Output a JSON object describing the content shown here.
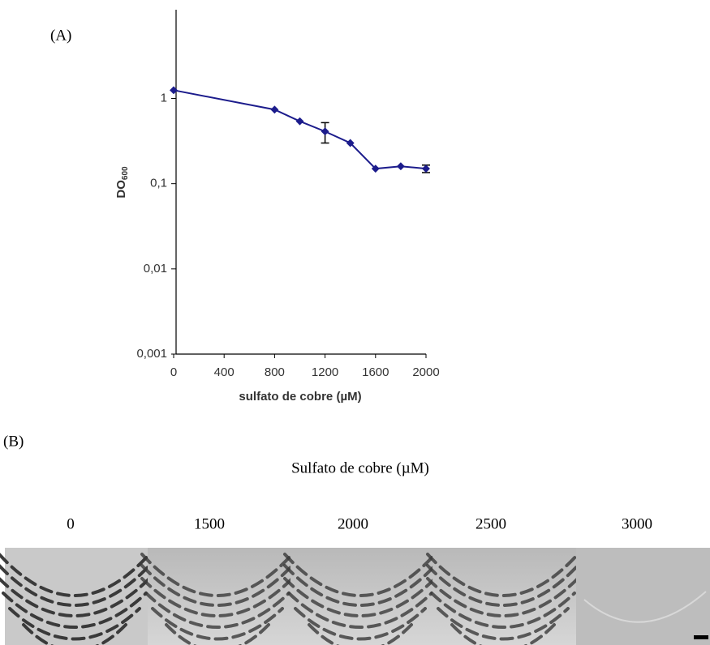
{
  "chart_data": {
    "type": "line",
    "panel_label": "(A)",
    "x_label": "sulfato de cobre (µM)",
    "y_label": "DO",
    "y_label_subscript": "600",
    "x": [
      0,
      800,
      1000,
      1200,
      1400,
      1600,
      1800,
      2000
    ],
    "values": [
      1.25,
      0.74,
      0.54,
      0.41,
      0.3,
      0.15,
      0.16,
      0.15
    ],
    "errors": [
      null,
      null,
      null,
      0.11,
      null,
      null,
      null,
      0.015
    ],
    "color": "#1c1c8c",
    "xlim": [
      0,
      2000
    ],
    "xticks": [
      0,
      400,
      800,
      1200,
      1600,
      2000
    ],
    "ylim": [
      0.001,
      11
    ],
    "y_log_scale": true,
    "yticks": [
      {
        "value": 0.001,
        "label": "0,001"
      },
      {
        "value": 0.01,
        "label": "0,01"
      },
      {
        "value": 0.1,
        "label": "0,1"
      },
      1
    ]
  },
  "panel_b": {
    "label": "(B)",
    "title": "Sulfato de cobre (µM)",
    "concentrations": [
      "0",
      "1500",
      "2000",
      "2500",
      "3000"
    ]
  }
}
